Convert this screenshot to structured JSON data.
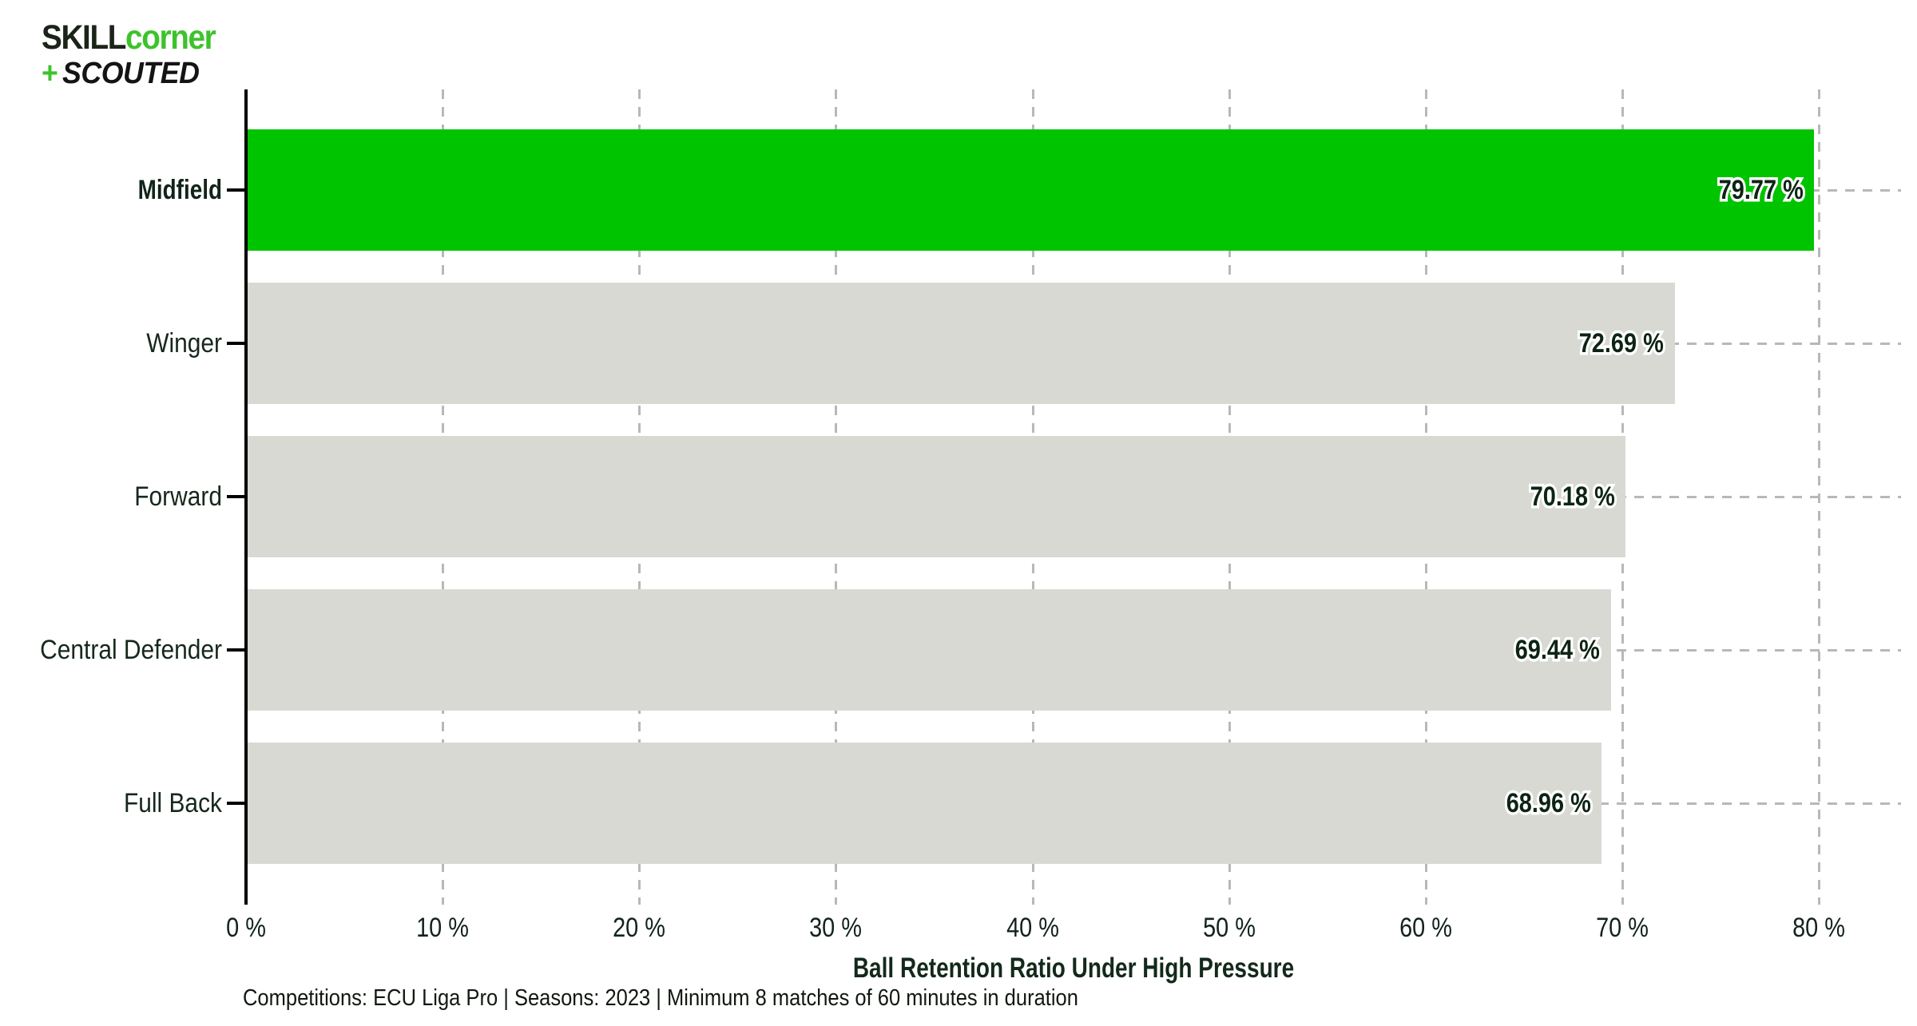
{
  "logo": {
    "line1_dark": "SKILL",
    "line1_green": "corner",
    "line2_plus": "+",
    "line2_dark": "SCOUTED"
  },
  "chart_data": {
    "type": "bar",
    "orientation": "horizontal",
    "title": "Ball Retention Ratio Under High Pressure",
    "subtitle": "Competitions: ECU Liga Pro | Seasons: 2023 | Minimum 8 matches of 60 minutes in duration",
    "categories": [
      "Midfield",
      "Winger",
      "Forward",
      "Central Defender",
      "Full Back"
    ],
    "values": [
      79.77,
      72.69,
      70.18,
      69.44,
      68.96
    ],
    "value_labels": [
      "79.77 %",
      "72.69 %",
      "70.18 %",
      "69.44 %",
      "68.96 %"
    ],
    "highlight_index": 0,
    "x_ticks": [
      "0 %",
      "10 %",
      "20 %",
      "30 %",
      "40 %",
      "50 %",
      "60 %",
      "70 %",
      "80 %"
    ],
    "x_tick_values": [
      0,
      10,
      20,
      30,
      40,
      50,
      60,
      70,
      80
    ],
    "xlim": [
      0,
      80
    ],
    "grid": "dashed",
    "legend": "none",
    "colors": {
      "highlight_bar": "#00c400",
      "default_bar": "#d9d9d4",
      "gridline": "#b8b8b8",
      "axis": "#000000",
      "text_dark": "#12281a",
      "logo_green": "#3ec22c"
    }
  }
}
